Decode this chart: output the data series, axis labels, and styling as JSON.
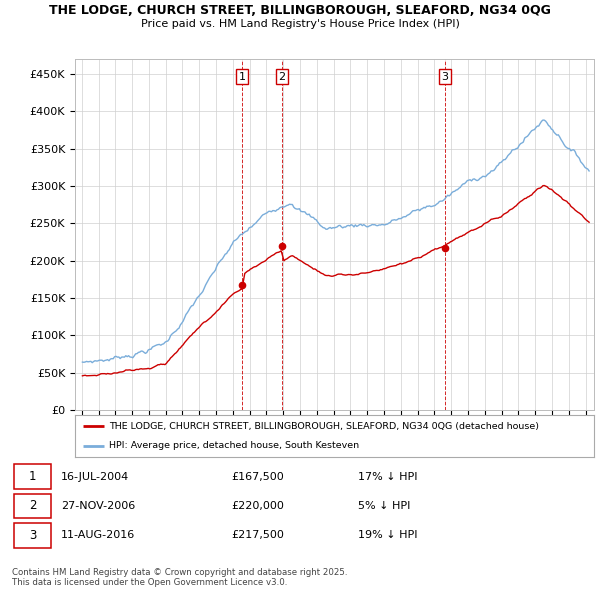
{
  "title_line1": "THE LODGE, CHURCH STREET, BILLINGBOROUGH, SLEAFORD, NG34 0QG",
  "title_line2": "Price paid vs. HM Land Registry's House Price Index (HPI)",
  "legend_property": "THE LODGE, CHURCH STREET, BILLINGBOROUGH, SLEAFORD, NG34 0QG (detached house)",
  "legend_hpi": "HPI: Average price, detached house, South Kesteven",
  "footer": "Contains HM Land Registry data © Crown copyright and database right 2025.\nThis data is licensed under the Open Government Licence v3.0.",
  "transactions": [
    {
      "num": 1,
      "date": "16-JUL-2004",
      "price": 167500,
      "hpi_diff": "17% ↓ HPI"
    },
    {
      "num": 2,
      "date": "27-NOV-2006",
      "price": 220000,
      "hpi_diff": "5% ↓ HPI"
    },
    {
      "num": 3,
      "date": "11-AUG-2016",
      "price": 217500,
      "hpi_diff": "19% ↓ HPI"
    }
  ],
  "property_color": "#cc0000",
  "hpi_color": "#7aadda",
  "vline_color": "#cc0000",
  "ylim": [
    0,
    470000
  ],
  "yticks": [
    0,
    50000,
    100000,
    150000,
    200000,
    250000,
    300000,
    350000,
    400000,
    450000
  ],
  "ytick_labels": [
    "£0",
    "£50K",
    "£100K",
    "£150K",
    "£200K",
    "£250K",
    "£300K",
    "£350K",
    "£400K",
    "£450K"
  ],
  "grid_color": "#d0d0d0",
  "background_color": "#ffffff",
  "t1": 2004.542,
  "t2": 2006.917,
  "t3": 2016.625
}
